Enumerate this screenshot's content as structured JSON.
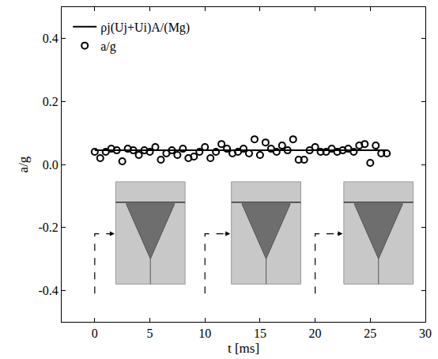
{
  "chart_data": {
    "type": "scatter",
    "x_label": "t [ms]",
    "y_label": "a/g",
    "xlim": [
      -3,
      30
    ],
    "xticks": [
      0,
      5,
      10,
      15,
      20,
      25,
      30
    ],
    "ylim": [
      -0.5,
      0.5
    ],
    "yticks": [
      -0.4,
      -0.2,
      {
        "value": 0,
        "label": "0.0"
      },
      0.2,
      0.4
    ],
    "grid": false,
    "legend": "upper left",
    "series": [
      {
        "name": "ρj(Uj+Ui)A/(Mg)",
        "type": "line",
        "line_style": "solid",
        "color": "#000000",
        "x": [
          0,
          26.5
        ],
        "values": [
          0.045,
          0.045
        ]
      },
      {
        "name": "a/g",
        "type": "scatter",
        "marker": "circle-open",
        "color": "#000000",
        "x": [
          0,
          0.5,
          1,
          1.5,
          2,
          2.5,
          3,
          3.5,
          4,
          4.5,
          5,
          5.5,
          6,
          6.5,
          7,
          7.5,
          8,
          8.5,
          9,
          9.5,
          10,
          10.5,
          11,
          11.5,
          12,
          12.5,
          13,
          13.5,
          14,
          14.5,
          15,
          15.5,
          16,
          16.5,
          17,
          17.5,
          18,
          18.5,
          19,
          19.5,
          20,
          20.5,
          21,
          21.5,
          22,
          22.5,
          23,
          23.5,
          24,
          24.5,
          25,
          25.5,
          26,
          26.5
        ],
        "values": [
          0.04,
          0.02,
          0.04,
          0.05,
          0.045,
          0.01,
          0.05,
          0.045,
          0.03,
          0.045,
          0.04,
          0.055,
          0.015,
          0.035,
          0.045,
          0.03,
          0.05,
          0.02,
          0.025,
          0.04,
          0.055,
          0.02,
          0.04,
          0.065,
          0.05,
          0.035,
          0.04,
          0.05,
          0.035,
          0.08,
          0.03,
          0.07,
          0.05,
          0.04,
          0.06,
          0.045,
          0.08,
          0.015,
          0.015,
          0.045,
          0.055,
          0.04,
          0.04,
          0.05,
          0.04,
          0.045,
          0.05,
          0.04,
          0.06,
          0.065,
          0.005,
          0.06,
          0.035,
          0.035
        ]
      }
    ]
  }
}
